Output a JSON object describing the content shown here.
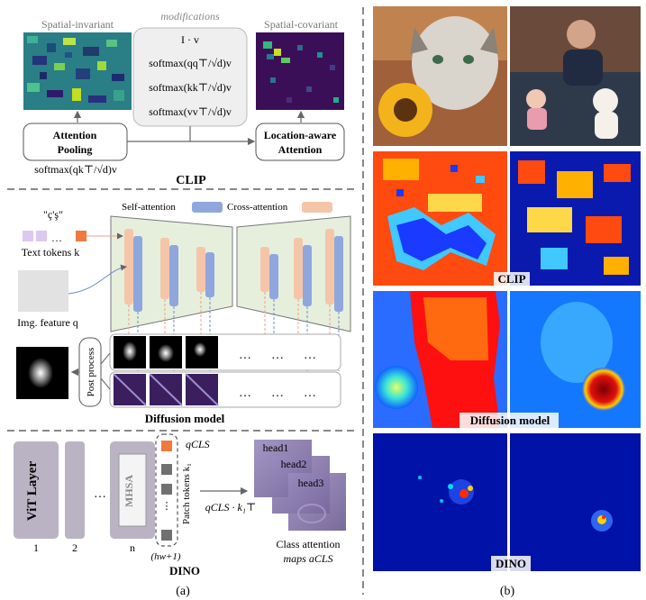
{
  "panel_a": {
    "clip": {
      "spatial_invariant": "Spatial-invariant",
      "modifications": "modifications",
      "spatial_covariant": "Spatial-covariant",
      "formulas": [
        "I · v",
        "softmax(qq⊤/√d)v",
        "softmax(kk⊤/√d)v",
        "softmax(vv⊤/√d)v"
      ],
      "attention_pooling": [
        "Attention",
        "Pooling"
      ],
      "location_aware": [
        "Location-aware",
        "Attention"
      ],
      "pooling_formula": "softmax(qk⊤/√d)v",
      "title": "CLIP"
    },
    "diffusion": {
      "prompt_text": "\"ç'ş\"",
      "text_tokens": "Text tokens k",
      "img_feature": "Img. feature q",
      "self_attention": "Self-attention",
      "cross_attention": "Cross-attention",
      "post_process": "Post process",
      "ellipsis": "…",
      "title": "Diffusion model"
    },
    "dino": {
      "vit_layer": "ViT Layer",
      "mhsa": "MHSA",
      "layer_numbers": [
        "1",
        "2",
        "n"
      ],
      "q_cls": "qCLS",
      "patch_tokens": "Patch tokens k₁",
      "hw": "(hw+1)",
      "product": "qCLS · k₁⊤",
      "heads": [
        "head1",
        "head2",
        "head3"
      ],
      "class_attention": [
        "Class attention",
        "maps aCLS"
      ],
      "title": "DINO"
    },
    "caption": "(a)"
  },
  "panel_b": {
    "labels": [
      "CLIP",
      "Diffusion model",
      "DINO"
    ],
    "caption": "(b)"
  },
  "colors": {
    "self_attention": "#8fa7dd",
    "cross_attention": "#f5c5a8",
    "unet": "#e6efdc",
    "token_orange": "#ee7a3e",
    "token_lilac": "#dcc8f0",
    "vit_layer": "#b9b3c4",
    "purple_map": "#7d6b99"
  }
}
